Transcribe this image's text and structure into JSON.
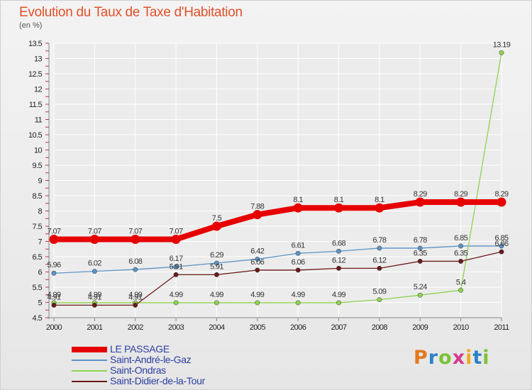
{
  "header": {
    "title": "Evolution du Taux de Taxe d'Habitation",
    "subtitle": "(en %)"
  },
  "logo": {
    "text": "Proxiti",
    "colors": [
      "#e2791f",
      "#2a82c8",
      "#7cc236",
      "#d43b8d",
      "#f0a91e",
      "#2a82c8",
      "#7cc236"
    ]
  },
  "chart_data": {
    "type": "line",
    "title": "Evolution du Taux de Taxe d'Habitation",
    "subtitle": "(en %)",
    "xlabel": "",
    "ylabel": "",
    "x": [
      "2000",
      "2001",
      "2002",
      "2003",
      "2004",
      "2005",
      "2006",
      "2007",
      "2008",
      "2009",
      "2010",
      "2011"
    ],
    "ylim": [
      4.5,
      13.5
    ],
    "yticks": [
      "4.5",
      "5",
      "5.5",
      "6",
      "6.5",
      "7",
      "7.5",
      "8",
      "8.5",
      "9",
      "9.5",
      "10",
      "10.5",
      "11",
      "11.5",
      "12",
      "12.5",
      "13",
      "13.5"
    ],
    "grid": true,
    "legend_position": "bottom-left",
    "series": [
      {
        "name": "LE PASSAGE",
        "color": "#e60000",
        "values": [
          7.07,
          7.07,
          7.07,
          7.07,
          7.5,
          7.88,
          8.1,
          8.1,
          8.1,
          8.29,
          8.29,
          8.29
        ],
        "labels": [
          "7.07",
          "7.07",
          "7.07",
          "7.07",
          "7.5",
          "7.88",
          "8.1",
          "8.1",
          "8.1",
          "8.29",
          "8.29",
          "8.29"
        ]
      },
      {
        "name": "Saint-André-le-Gaz",
        "color": "#5b93c4",
        "values": [
          5.96,
          6.02,
          6.08,
          6.17,
          6.29,
          6.42,
          6.61,
          6.68,
          6.78,
          6.78,
          6.85,
          6.85
        ],
        "labels": [
          "5.96",
          "6.02",
          "6.08",
          "6.17",
          "6.29",
          "6.42",
          "6.61",
          "6.68",
          "6.78",
          "6.78",
          "6.85",
          "6.85"
        ]
      },
      {
        "name": "Saint-Ondras",
        "color": "#8ed34f",
        "values": [
          4.99,
          4.99,
          4.99,
          4.99,
          4.99,
          4.99,
          4.99,
          4.99,
          5.09,
          5.24,
          5.4,
          13.19
        ],
        "labels": [
          "4.99",
          "4.99",
          "4.99",
          "4.99",
          "4.99",
          "4.99",
          "4.99",
          "4.99",
          "5.09",
          "5.24",
          "5.4",
          "13.19"
        ]
      },
      {
        "name": "Saint-Didier-de-la-Tour",
        "color": "#6b1a1a",
        "values": [
          4.91,
          4.91,
          4.91,
          5.91,
          5.91,
          6.06,
          6.06,
          6.12,
          6.12,
          6.35,
          6.35,
          6.66
        ],
        "labels": [
          "4.91",
          "4.91",
          "4.91",
          "5.91",
          "5.91",
          "6.06",
          "6.06",
          "6.12",
          "6.12",
          "6.35",
          "6.35",
          "6.66"
        ]
      }
    ]
  }
}
